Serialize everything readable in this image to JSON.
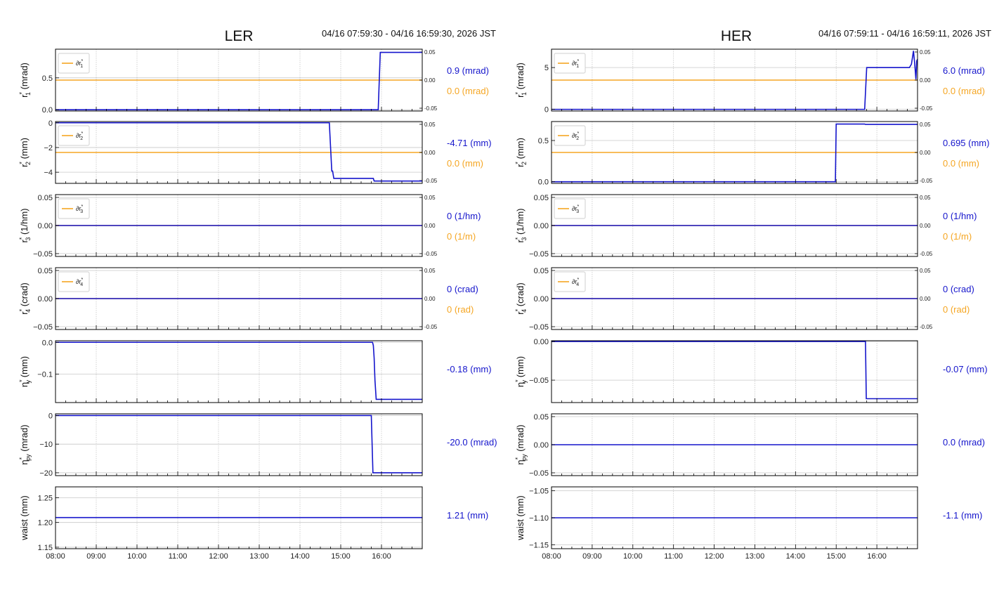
{
  "colors": {
    "main": "#1515cc",
    "dev": "#f5a623",
    "grid": "#c8c8c8",
    "frame": "#000000"
  },
  "x_ticks": [
    "08:00",
    "09:00",
    "10:00",
    "11:00",
    "12:00",
    "13:00",
    "14:00",
    "15:00",
    "16:00"
  ],
  "chart_data": [
    {
      "type": "line",
      "title": "LER",
      "time_range": "04/16 07:59:30 - 04/16 16:59:30, 2026 JST",
      "xlim": [
        "08:00",
        "17:00"
      ],
      "panels": [
        {
          "ylabel": "r1* (mrad)",
          "ylim": [
            -0.02,
            0.95
          ],
          "yticks": [
            "0.5",
            "0.0"
          ],
          "ytick_values": [
            0.5,
            0.0
          ],
          "main": [
            [
              8.0,
              0.0
            ],
            [
              15.92,
              0.0
            ],
            [
              15.97,
              0.9
            ],
            [
              17.0,
              0.9
            ]
          ],
          "dev_label": "∂r1*",
          "dev_ylim": [
            -0.05,
            0.05
          ],
          "dev_yticks": [
            "0.05",
            "0.00",
            "-0.05"
          ],
          "dev_ytick_values": [
            0.05,
            0.0,
            -0.05
          ],
          "dev": [
            [
              8.0,
              0.0
            ],
            [
              17.0,
              0.0
            ]
          ],
          "main_value": "0.9 (mrad)",
          "dev_value": "0.0 (mrad)"
        },
        {
          "ylabel": "r2* (mm)",
          "ylim": [
            -4.9,
            0.1
          ],
          "yticks": [
            "0",
            "−2",
            "−4"
          ],
          "ytick_values": [
            0,
            -2,
            -4
          ],
          "main": [
            [
              8.0,
              0.0
            ],
            [
              14.72,
              0.0
            ],
            [
              14.78,
              -3.9
            ],
            [
              14.8,
              -3.9
            ],
            [
              14.83,
              -4.5
            ],
            [
              15.8,
              -4.5
            ],
            [
              15.82,
              -4.71
            ],
            [
              17.0,
              -4.71
            ]
          ],
          "dev_label": "∂r2*",
          "dev_ylim": [
            -0.05,
            0.05
          ],
          "dev_yticks": [
            "0.05",
            "0.00",
            "-0.05"
          ],
          "dev_ytick_values": [
            0.05,
            0.0,
            -0.05
          ],
          "dev": [
            [
              8.0,
              0.0
            ],
            [
              17.0,
              0.0
            ]
          ],
          "main_value": "-4.71 (mm)",
          "dev_value": "0.0 (mm)"
        },
        {
          "ylabel": "r3* (1/hm)",
          "ylim": [
            -0.055,
            0.055
          ],
          "yticks": [
            "0.05",
            "0.00",
            "−0.05"
          ],
          "ytick_values": [
            0.05,
            0.0,
            -0.05
          ],
          "main": [
            [
              8.0,
              0.0
            ],
            [
              17.0,
              0.0
            ]
          ],
          "dev_label": "∂r3*",
          "dev_ylim": [
            -0.05,
            0.05
          ],
          "dev_yticks": [
            "0.05",
            "0.00",
            "-0.05"
          ],
          "dev_ytick_values": [
            0.05,
            0.0,
            -0.05
          ],
          "dev": [
            [
              8.0,
              0.0
            ],
            [
              17.0,
              0.0
            ]
          ],
          "main_value": "0 (1/hm)",
          "dev_value": "0 (1/m)"
        },
        {
          "ylabel": "r4* (crad)",
          "ylim": [
            -0.055,
            0.055
          ],
          "yticks": [
            "0.05",
            "0.00",
            "−0.05"
          ],
          "ytick_values": [
            0.05,
            0.0,
            -0.05
          ],
          "main": [
            [
              8.0,
              0.0
            ],
            [
              17.0,
              0.0
            ]
          ],
          "dev_label": "∂r4*",
          "dev_ylim": [
            -0.05,
            0.05
          ],
          "dev_yticks": [
            "0.05",
            "0.00",
            "-0.05"
          ],
          "dev_ytick_values": [
            0.05,
            0.0,
            -0.05
          ],
          "dev": [
            [
              8.0,
              0.0
            ],
            [
              17.0,
              0.0
            ]
          ],
          "main_value": "0 (crad)",
          "dev_value": "0 (rad)"
        },
        {
          "ylabel": "ηy* (mm)",
          "ylim": [
            -0.19,
            0.005
          ],
          "yticks": [
            "0.0",
            "−0.1"
          ],
          "ytick_values": [
            0.0,
            -0.1
          ],
          "main": [
            [
              8.0,
              0.0
            ],
            [
              15.78,
              0.0
            ],
            [
              15.8,
              -0.01
            ],
            [
              15.82,
              -0.05
            ],
            [
              15.84,
              -0.12
            ],
            [
              15.87,
              -0.18
            ],
            [
              17.0,
              -0.18
            ]
          ],
          "main_value": "-0.18 (mm)"
        },
        {
          "ylabel": "ηpy* (mrad)",
          "ylim": [
            -21.0,
            0.6
          ],
          "yticks": [
            "0",
            "−10",
            "−20"
          ],
          "ytick_values": [
            0,
            -10,
            -20
          ],
          "main": [
            [
              8.0,
              0.0
            ],
            [
              15.75,
              0.0
            ],
            [
              15.77,
              -10.0
            ],
            [
              15.79,
              -20.0
            ],
            [
              17.0,
              -20.0
            ]
          ],
          "main_value": "-20.0 (mrad)"
        },
        {
          "ylabel": "waist (mm)",
          "ylim": [
            1.147,
            1.272
          ],
          "yticks": [
            "1.25",
            "1.20",
            "1.15"
          ],
          "ytick_values": [
            1.25,
            1.2,
            1.15
          ],
          "main": [
            [
              8.0,
              1.21
            ],
            [
              17.0,
              1.21
            ]
          ],
          "main_value": "1.21 (mm)"
        }
      ]
    },
    {
      "type": "line",
      "title": "HER",
      "time_range": "04/16 07:59:11 - 04/16 16:59:11, 2026 JST",
      "xlim": [
        "08:00",
        "17:00"
      ],
      "panels": [
        {
          "ylabel": "r1* (mrad)",
          "ylim": [
            -0.2,
            7.2
          ],
          "yticks": [
            "5",
            "0"
          ],
          "ytick_values": [
            5,
            0
          ],
          "main": [
            [
              8.0,
              0.0
            ],
            [
              15.7,
              0.0
            ],
            [
              15.75,
              5.0
            ],
            [
              16.8,
              5.0
            ],
            [
              16.85,
              5.4
            ],
            [
              16.9,
              7.0
            ],
            [
              16.93,
              5.5
            ],
            [
              16.96,
              3.6
            ],
            [
              16.98,
              5.8
            ],
            [
              17.0,
              6.0
            ]
          ],
          "dev_label": "∂r1*",
          "dev_ylim": [
            -0.05,
            0.05
          ],
          "dev_yticks": [
            "0.05",
            "0.00",
            "-0.05"
          ],
          "dev_ytick_values": [
            0.05,
            0.0,
            -0.05
          ],
          "dev": [
            [
              8.0,
              0.0
            ],
            [
              17.0,
              0.0
            ]
          ],
          "main_value": "6.0 (mrad)",
          "dev_value": "0.0 (mrad)"
        },
        {
          "ylabel": "r2* (mm)",
          "ylim": [
            -0.02,
            0.73
          ],
          "yticks": [
            "0.5",
            "0.0"
          ],
          "ytick_values": [
            0.5,
            0.0
          ],
          "main": [
            [
              8.0,
              0.0
            ],
            [
              14.98,
              0.0
            ],
            [
              15.0,
              0.7
            ],
            [
              15.7,
              0.7
            ],
            [
              15.72,
              0.695
            ],
            [
              17.0,
              0.695
            ]
          ],
          "dev_label": "∂r2*",
          "dev_ylim": [
            -0.05,
            0.05
          ],
          "dev_yticks": [
            "0.05",
            "0.00",
            "-0.05"
          ],
          "dev_ytick_values": [
            0.05,
            0.0,
            -0.05
          ],
          "dev": [
            [
              8.0,
              0.0
            ],
            [
              17.0,
              0.0
            ]
          ],
          "main_value": "0.695 (mm)",
          "dev_value": "0.0 (mm)"
        },
        {
          "ylabel": "r3* (1/hm)",
          "ylim": [
            -0.055,
            0.055
          ],
          "yticks": [
            "0.05",
            "0.00",
            "−0.05"
          ],
          "ytick_values": [
            0.05,
            0.0,
            -0.05
          ],
          "main": [
            [
              8.0,
              0.0
            ],
            [
              17.0,
              0.0
            ]
          ],
          "dev_label": "∂r3*",
          "dev_ylim": [
            -0.05,
            0.05
          ],
          "dev_yticks": [
            "0.05",
            "0.00",
            "-0.05"
          ],
          "dev_ytick_values": [
            0.05,
            0.0,
            -0.05
          ],
          "dev": [
            [
              8.0,
              0.0
            ],
            [
              17.0,
              0.0
            ]
          ],
          "main_value": "0 (1/hm)",
          "dev_value": "0 (1/m)"
        },
        {
          "ylabel": "r4* (crad)",
          "ylim": [
            -0.055,
            0.055
          ],
          "yticks": [
            "0.05",
            "0.00",
            "−0.05"
          ],
          "ytick_values": [
            0.05,
            0.0,
            -0.05
          ],
          "main": [
            [
              8.0,
              0.0
            ],
            [
              17.0,
              0.0
            ]
          ],
          "dev_label": "∂r4*",
          "dev_ylim": [
            -0.05,
            0.05
          ],
          "dev_yticks": [
            "0.05",
            "0.00",
            "-0.05"
          ],
          "dev_ytick_values": [
            0.05,
            0.0,
            -0.05
          ],
          "dev": [
            [
              8.0,
              0.0
            ],
            [
              17.0,
              0.0
            ]
          ],
          "main_value": "0 (crad)",
          "dev_value": "0 (rad)"
        },
        {
          "ylabel": "ηy* (mm)",
          "ylim": [
            -0.079,
            0.001
          ],
          "yticks": [
            "0.00",
            "−0.05"
          ],
          "ytick_values": [
            0.0,
            -0.05
          ],
          "main": [
            [
              8.0,
              0.0
            ],
            [
              15.72,
              0.0
            ],
            [
              15.74,
              -0.074
            ],
            [
              17.0,
              -0.074
            ]
          ],
          "main_value": "-0.07 (mm)"
        },
        {
          "ylabel": "ηpy* (mrad)",
          "ylim": [
            -0.055,
            0.055
          ],
          "yticks": [
            "0.05",
            "0.00",
            "−0.05"
          ],
          "ytick_values": [
            0.05,
            0.0,
            -0.05
          ],
          "main": [
            [
              8.0,
              0.0
            ],
            [
              17.0,
              0.0
            ]
          ],
          "main_value": "0.0 (mrad)"
        },
        {
          "ylabel": "waist (mm)",
          "ylim": [
            -1.157,
            -1.043
          ],
          "yticks": [
            "−1.05",
            "−1.10",
            "−1.15"
          ],
          "ytick_values": [
            -1.05,
            -1.1,
            -1.15
          ],
          "main": [
            [
              8.0,
              -1.1
            ],
            [
              17.0,
              -1.1
            ]
          ],
          "main_value": "-1.1 (mm)"
        }
      ]
    }
  ]
}
